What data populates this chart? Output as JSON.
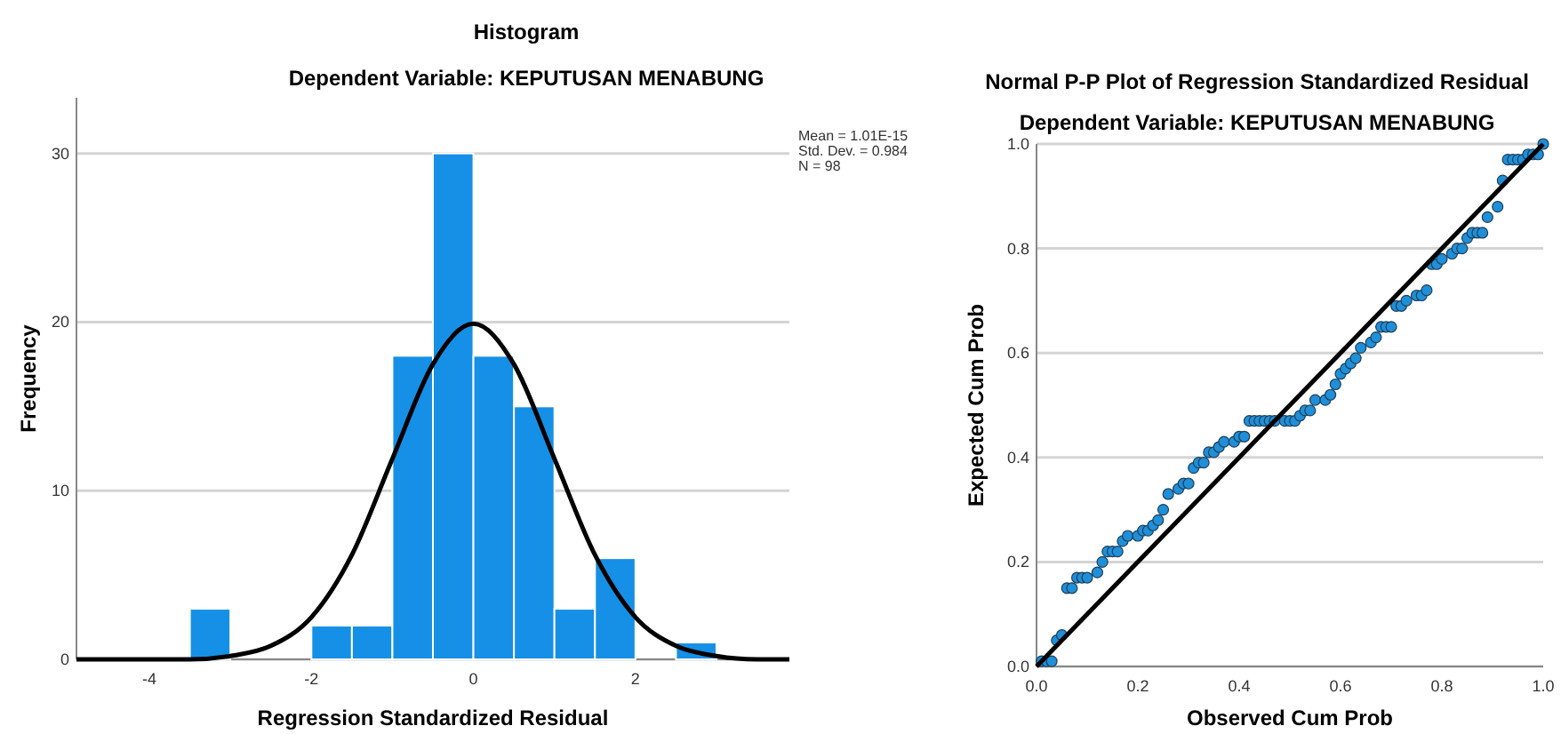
{
  "chart_data": [
    {
      "type": "histogram",
      "title": "Histogram",
      "subtitle": "Dependent Variable: KEPUTUSAN MENABUNG",
      "xlabel": "Regression Standardized Residual",
      "ylabel": "Frequency",
      "bins": [
        -3.5,
        -3,
        -2.5,
        -2,
        -1.5,
        -1,
        -0.5,
        0,
        0.5,
        1,
        1.5,
        2,
        2.5,
        3
      ],
      "series": [
        {
          "color": "#1690e6",
          "values": [
            3,
            0,
            0,
            2,
            2,
            18,
            30,
            18,
            15,
            3,
            6,
            0,
            1
          ]
        },
        {
          "type": "line",
          "color": "#000000",
          "x": [
            -4.9,
            -4.5,
            -4,
            -3.5,
            -3,
            -2.5,
            -2,
            -1.5,
            -1,
            -0.5,
            0,
            0.5,
            1,
            1.5,
            2,
            2.5,
            3,
            3.5,
            3.9
          ],
          "values": [
            0,
            0,
            0,
            0,
            0.2,
            0.8,
            2.5,
            6.2,
            11.9,
            17.5,
            19.9,
            17.5,
            11.9,
            6.2,
            2.5,
            0.8,
            0.2,
            0,
            0
          ]
        }
      ],
      "xlim": [
        -4.9,
        3.9
      ],
      "xticks": [
        -4,
        -2,
        0,
        2
      ],
      "ylim": [
        0,
        33.3
      ],
      "yticks": [
        0,
        10,
        20,
        30
      ],
      "grid": "y",
      "annotations": [
        "Mean = 1.01E-15",
        "Std. Dev. = 0.984",
        "N = 98"
      ]
    },
    {
      "type": "scatter",
      "title": "Normal P-P Plot of Regression Standardized Residual",
      "subtitle": "Dependent Variable: KEPUTUSAN MENABUNG",
      "xlabel": "Observed Cum Prob",
      "ylabel": "Expected Cum Prob",
      "series": [
        {
          "color": "#1f8fd8",
          "marker": "circle",
          "x": [
            0.01,
            0.02,
            0.03,
            0.04,
            0.05,
            0.06,
            0.07,
            0.08,
            0.09,
            0.1,
            0.12,
            0.13,
            0.14,
            0.15,
            0.16,
            0.17,
            0.18,
            0.2,
            0.21,
            0.22,
            0.23,
            0.24,
            0.25,
            0.26,
            0.28,
            0.29,
            0.3,
            0.31,
            0.32,
            0.33,
            0.34,
            0.35,
            0.36,
            0.37,
            0.39,
            0.4,
            0.41,
            0.42,
            0.43,
            0.44,
            0.45,
            0.46,
            0.47,
            0.49,
            0.5,
            0.51,
            0.52,
            0.53,
            0.54,
            0.55,
            0.57,
            0.58,
            0.59,
            0.6,
            0.61,
            0.62,
            0.63,
            0.64,
            0.66,
            0.67,
            0.68,
            0.69,
            0.7,
            0.71,
            0.72,
            0.73,
            0.75,
            0.76,
            0.77,
            0.78,
            0.79,
            0.8,
            0.82,
            0.83,
            0.84,
            0.85,
            0.86,
            0.87,
            0.88,
            0.89,
            0.91,
            0.92,
            0.93,
            0.94,
            0.95,
            0.96,
            0.97,
            0.98,
            0.99,
            1
          ],
          "values": [
            0.01,
            0.01,
            0.01,
            0.05,
            0.06,
            0.15,
            0.15,
            0.17,
            0.17,
            0.17,
            0.18,
            0.2,
            0.22,
            0.22,
            0.22,
            0.24,
            0.25,
            0.25,
            0.26,
            0.26,
            0.27,
            0.28,
            0.3,
            0.33,
            0.34,
            0.35,
            0.35,
            0.38,
            0.39,
            0.39,
            0.41,
            0.41,
            0.42,
            0.43,
            0.43,
            0.44,
            0.44,
            0.47,
            0.47,
            0.47,
            0.47,
            0.47,
            0.47,
            0.47,
            0.47,
            0.47,
            0.48,
            0.49,
            0.49,
            0.51,
            0.51,
            0.52,
            0.54,
            0.56,
            0.57,
            0.58,
            0.59,
            0.61,
            0.62,
            0.63,
            0.65,
            0.65,
            0.65,
            0.69,
            0.69,
            0.7,
            0.71,
            0.71,
            0.72,
            0.77,
            0.77,
            0.78,
            0.79,
            0.8,
            0.8,
            0.82,
            0.83,
            0.83,
            0.83,
            0.86,
            0.88,
            0.93,
            0.97,
            0.97,
            0.97,
            0.97,
            0.98,
            0.98,
            0.98,
            1
          ]
        },
        {
          "type": "line",
          "color": "#000000",
          "x": [
            0,
            1
          ],
          "values": [
            0,
            1
          ]
        }
      ],
      "xlim": [
        0,
        1
      ],
      "ylim": [
        0,
        1
      ],
      "xticks": [
        {
          "value": 0,
          "label": "0.0"
        },
        {
          "value": 0.2,
          "label": "0.2"
        },
        {
          "value": 0.4,
          "label": "0.4"
        },
        {
          "value": 0.6,
          "label": "0.6"
        },
        {
          "value": 0.8,
          "label": "0.8"
        },
        {
          "value": 1,
          "label": "1.0"
        }
      ],
      "yticks": [
        {
          "value": 0,
          "label": "0.0"
        },
        {
          "value": 0.2,
          "label": "0.2"
        },
        {
          "value": 0.4,
          "label": "0.4"
        },
        {
          "value": 0.6,
          "label": "0.6"
        },
        {
          "value": 0.8,
          "label": "0.8"
        },
        {
          "value": 1,
          "label": "1.0"
        }
      ],
      "grid": "y"
    }
  ]
}
